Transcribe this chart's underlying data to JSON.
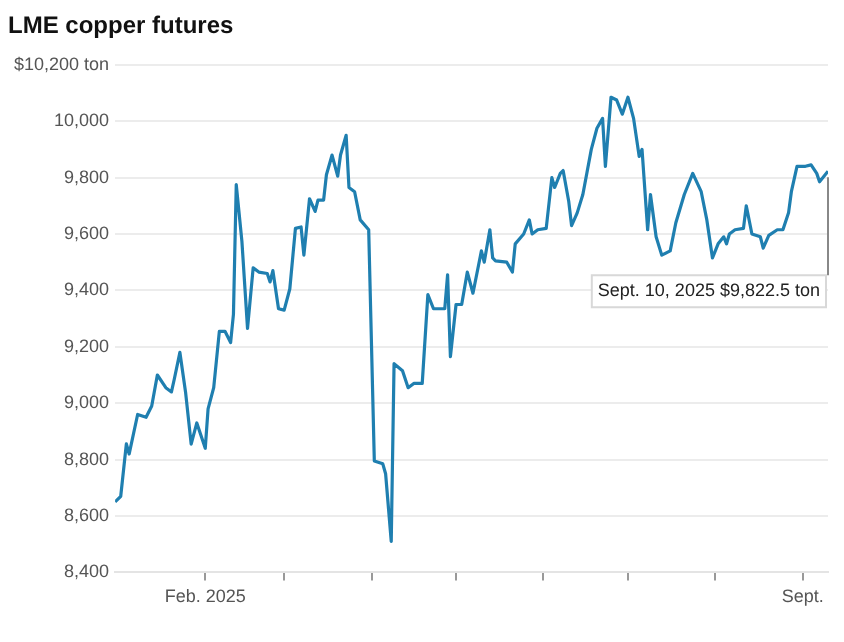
{
  "chart_data": {
    "type": "line",
    "title": "LME copper futures",
    "x": [
      "2024-12-31",
      "2025-01-02",
      "2025-01-04",
      "2025-01-05",
      "2025-01-08",
      "2025-01-11",
      "2025-01-13",
      "2025-01-15",
      "2025-01-18",
      "2025-01-20",
      "2025-01-21",
      "2025-01-23",
      "2025-01-25",
      "2025-01-27",
      "2025-01-29",
      "2025-02-01",
      "2025-02-02",
      "2025-02-04",
      "2025-02-06",
      "2025-02-08",
      "2025-02-10",
      "2025-02-11",
      "2025-02-12",
      "2025-02-14",
      "2025-02-16",
      "2025-02-18",
      "2025-02-20",
      "2025-02-23",
      "2025-02-24",
      "2025-02-25",
      "2025-02-27",
      "2025-03-01",
      "2025-03-03",
      "2025-03-05",
      "2025-03-07",
      "2025-03-08",
      "2025-03-10",
      "2025-03-12",
      "2025-03-13",
      "2025-03-15",
      "2025-03-16",
      "2025-03-18",
      "2025-03-20",
      "2025-03-21",
      "2025-03-23",
      "2025-03-24",
      "2025-03-26",
      "2025-03-28",
      "2025-03-31",
      "2025-04-02",
      "2025-04-05",
      "2025-04-06",
      "2025-04-08",
      "2025-04-09",
      "2025-04-12",
      "2025-04-14",
      "2025-04-16",
      "2025-04-19",
      "2025-04-21",
      "2025-04-23",
      "2025-04-27",
      "2025-04-28",
      "2025-04-29",
      "2025-05-01",
      "2025-05-03",
      "2025-05-05",
      "2025-05-07",
      "2025-05-09",
      "2025-05-10",
      "2025-05-11",
      "2025-05-13",
      "2025-05-14",
      "2025-05-15",
      "2025-05-19",
      "2025-05-21",
      "2025-05-22",
      "2025-05-25",
      "2025-05-27",
      "2025-05-28",
      "2025-05-30",
      "2025-06-02",
      "2025-06-04",
      "2025-06-05",
      "2025-06-07",
      "2025-06-08",
      "2025-06-10",
      "2025-06-11",
      "2025-06-13",
      "2025-06-15",
      "2025-06-18",
      "2025-06-20",
      "2025-06-22",
      "2025-06-23",
      "2025-06-25",
      "2025-06-27",
      "2025-06-29",
      "2025-07-01",
      "2025-07-03",
      "2025-07-05",
      "2025-07-06",
      "2025-07-08",
      "2025-07-09",
      "2025-07-11",
      "2025-07-13",
      "2025-07-16",
      "2025-07-18",
      "2025-07-21",
      "2025-07-24",
      "2025-07-27",
      "2025-07-29",
      "2025-07-31",
      "2025-08-02",
      "2025-08-04",
      "2025-08-05",
      "2025-08-06",
      "2025-08-08",
      "2025-08-11",
      "2025-08-12",
      "2025-08-14",
      "2025-08-17",
      "2025-08-18",
      "2025-08-20",
      "2025-08-23",
      "2025-08-25",
      "2025-08-27",
      "2025-08-28",
      "2025-08-30",
      "2025-09-02",
      "2025-09-04",
      "2025-09-06",
      "2025-09-07",
      "2025-09-10"
    ],
    "series": [
      {
        "color": "#1f7fb0",
        "values": [
          8650,
          8670,
          8856,
          8820,
          8960,
          8950,
          8990,
          9100,
          9055,
          9040,
          9085,
          9180,
          9040,
          8855,
          8930,
          8840,
          8980,
          9055,
          9255,
          9255,
          9215,
          9315,
          9775,
          9575,
          9265,
          9480,
          9465,
          9460,
          9430,
          9470,
          9335,
          9330,
          9405,
          9620,
          9625,
          9525,
          9725,
          9680,
          9720,
          9720,
          9810,
          9880,
          9805,
          9880,
          9950,
          9765,
          9750,
          9650,
          9615,
          8795,
          8785,
          8750,
          8510,
          9140,
          9115,
          9055,
          9070,
          9070,
          9385,
          9335,
          9335,
          9455,
          9165,
          9350,
          9350,
          9465,
          9390,
          9490,
          9540,
          9500,
          9615,
          9515,
          9505,
          9500,
          9465,
          9565,
          9600,
          9650,
          9600,
          9615,
          9620,
          9800,
          9765,
          9815,
          9825,
          9715,
          9630,
          9675,
          9740,
          9900,
          9975,
          10010,
          9840,
          10085,
          10075,
          10025,
          10085,
          10010,
          9875,
          9900,
          9615,
          9740,
          9590,
          9525,
          9540,
          9640,
          9740,
          9815,
          9750,
          9650,
          9515,
          9565,
          9590,
          9565,
          9600,
          9615,
          9620,
          9700,
          9600,
          9590,
          9550,
          9595,
          9615,
          9615,
          9675,
          9750,
          9840,
          9840,
          9845,
          9815,
          9785,
          9822.5
        ]
      }
    ],
    "xlim": [
      "2024-12-31",
      "2025-09-10"
    ],
    "xticks": [
      {
        "value": "2025-02-01",
        "label": "Feb. 2025"
      },
      {
        "value": "2025-03-01",
        "label": null
      },
      {
        "value": "2025-04-01",
        "label": null
      },
      {
        "value": "2025-05-01",
        "label": null
      },
      {
        "value": "2025-06-01",
        "label": null
      },
      {
        "value": "2025-07-01",
        "label": null
      },
      {
        "value": "2025-08-01",
        "label": null
      },
      {
        "value": "2025-09-01",
        "label": "Sept."
      }
    ],
    "ylim": [
      8400,
      10200
    ],
    "yticks": [
      {
        "value": 8400,
        "label": "8,400"
      },
      {
        "value": 8600,
        "label": "8,600"
      },
      {
        "value": 8800,
        "label": "8,800"
      },
      {
        "value": 9000,
        "label": "9,000"
      },
      {
        "value": 9200,
        "label": "9,200"
      },
      {
        "value": 9400,
        "label": "9,400"
      },
      {
        "value": 9600,
        "label": "9,600"
      },
      {
        "value": 9800,
        "label": "9,800"
      },
      {
        "value": 10000,
        "label": "10,000"
      },
      {
        "value": 10200,
        "label": "$10,200 ton"
      }
    ],
    "grid": "y",
    "marker": "none",
    "line_style": "solid",
    "legend": false,
    "annotations": [
      {
        "text": "Sept. 10, 2025 $9,822.5 ton",
        "x": "2025-09-10",
        "y": 9822.5
      }
    ]
  }
}
